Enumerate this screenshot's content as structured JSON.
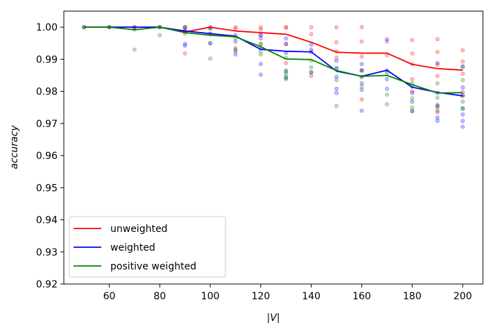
{
  "chart_data": {
    "type": "line",
    "xlabel": "|V|",
    "ylabel": "accuracy",
    "xlim": [
      42,
      208
    ],
    "ylim": [
      0.92,
      1.005
    ],
    "xticks": [
      60,
      80,
      100,
      120,
      140,
      160,
      180,
      200
    ],
    "yticks": [
      0.92,
      0.93,
      0.94,
      0.95,
      0.96,
      0.97,
      0.98,
      0.99,
      1.0
    ],
    "xtick_labels": [
      "60",
      "80",
      "100",
      "120",
      "140",
      "160",
      "180",
      "200"
    ],
    "ytick_labels": [
      "0.92",
      "0.93",
      "0.94",
      "0.95",
      "0.96",
      "0.97",
      "0.98",
      "0.99",
      "1.00"
    ],
    "legend_position": "lower-left",
    "x": [
      50,
      60,
      70,
      80,
      90,
      100,
      110,
      120,
      130,
      140,
      150,
      160,
      170,
      180,
      190,
      200
    ],
    "series": [
      {
        "name": "unweighted",
        "color": "#ff0000",
        "values": [
          1.0,
          1.0,
          1.0,
          1.0,
          0.9985,
          1.0,
          0.9988,
          0.9983,
          0.9978,
          0.9953,
          0.9922,
          0.9919,
          0.9919,
          0.9884,
          0.9871,
          0.9866
        ]
      },
      {
        "name": "weighted",
        "color": "#0000ff",
        "values": [
          1.0,
          1.0,
          1.0,
          1.0,
          0.9988,
          0.998,
          0.9972,
          0.9931,
          0.9925,
          0.9923,
          0.9863,
          0.9847,
          0.9866,
          0.9813,
          0.9797,
          0.9786
        ]
      },
      {
        "name": "positive weighted",
        "color": "#008000",
        "values": [
          1.0,
          1.0,
          0.9992,
          1.0,
          0.9983,
          0.9975,
          0.997,
          0.9939,
          0.9901,
          0.9899,
          0.9865,
          0.9847,
          0.985,
          0.9821,
          0.9795,
          0.9796
        ]
      }
    ],
    "scatter_series": [
      {
        "color": "#ff0000",
        "points": [
          [
            50,
            1.0
          ],
          [
            60,
            1.0
          ],
          [
            70,
            1.0
          ],
          [
            80,
            1.0
          ],
          [
            90,
            1.0
          ],
          [
            90,
            0.9992
          ],
          [
            90,
            0.998
          ],
          [
            90,
            0.9918
          ],
          [
            100,
            1.0
          ],
          [
            100,
            0.998
          ],
          [
            110,
            1.0
          ],
          [
            110,
            0.9995
          ],
          [
            110,
            0.9935
          ],
          [
            120,
            1.0
          ],
          [
            120,
            0.9993
          ],
          [
            120,
            0.9975
          ],
          [
            120,
            0.9948
          ],
          [
            130,
            1.0
          ],
          [
            130,
            0.9998
          ],
          [
            130,
            0.9947
          ],
          [
            130,
            0.9888
          ],
          [
            140,
            1.0
          ],
          [
            140,
            0.9978
          ],
          [
            140,
            0.9848
          ],
          [
            150,
            1.0
          ],
          [
            150,
            0.9953
          ],
          [
            150,
            0.9925
          ],
          [
            150,
            0.9905
          ],
          [
            160,
            1.0
          ],
          [
            160,
            0.9955
          ],
          [
            160,
            0.9908
          ],
          [
            160,
            0.9865
          ],
          [
            160,
            0.9775
          ],
          [
            170,
            0.9955
          ],
          [
            170,
            0.9912
          ],
          [
            180,
            0.996
          ],
          [
            180,
            0.9918
          ],
          [
            180,
            0.9885
          ],
          [
            180,
            0.9838
          ],
          [
            180,
            0.98
          ],
          [
            190,
            0.9963
          ],
          [
            190,
            0.9923
          ],
          [
            190,
            0.9883
          ],
          [
            190,
            0.9848
          ],
          [
            190,
            0.975
          ],
          [
            190,
            0.9735
          ],
          [
            200,
            0.9928
          ],
          [
            200,
            0.9893
          ],
          [
            200,
            0.9855
          ],
          [
            200,
            0.9798
          ],
          [
            200,
            0.9785
          ]
        ]
      },
      {
        "color": "#0000ff",
        "points": [
          [
            50,
            1.0
          ],
          [
            60,
            1.0
          ],
          [
            70,
            1.0
          ],
          [
            80,
            1.0
          ],
          [
            90,
            1.0
          ],
          [
            90,
            0.9988
          ],
          [
            90,
            0.9948
          ],
          [
            90,
            0.9942
          ],
          [
            100,
            0.9998
          ],
          [
            100,
            0.9978
          ],
          [
            100,
            0.995
          ],
          [
            110,
            0.9975
          ],
          [
            110,
            0.9955
          ],
          [
            110,
            0.9925
          ],
          [
            110,
            0.9915
          ],
          [
            120,
            0.9975
          ],
          [
            120,
            0.9965
          ],
          [
            120,
            0.9935
          ],
          [
            120,
            0.9885
          ],
          [
            120,
            0.9852
          ],
          [
            130,
            0.9965
          ],
          [
            130,
            0.9948
          ],
          [
            130,
            0.992
          ],
          [
            130,
            0.9862
          ],
          [
            130,
            0.9842
          ],
          [
            140,
            0.9945
          ],
          [
            140,
            0.993
          ],
          [
            140,
            0.9923
          ],
          [
            140,
            0.986
          ],
          [
            150,
            0.9895
          ],
          [
            150,
            0.9872
          ],
          [
            150,
            0.9845
          ],
          [
            150,
            0.9808
          ],
          [
            150,
            0.9795
          ],
          [
            160,
            0.9885
          ],
          [
            160,
            0.9865
          ],
          [
            160,
            0.9845
          ],
          [
            160,
            0.9825
          ],
          [
            160,
            0.9805
          ],
          [
            160,
            0.974
          ],
          [
            170,
            0.9962
          ],
          [
            170,
            0.9865
          ],
          [
            170,
            0.9838
          ],
          [
            170,
            0.9808
          ],
          [
            180,
            0.9815
          ],
          [
            180,
            0.9795
          ],
          [
            180,
            0.9768
          ],
          [
            180,
            0.9738
          ],
          [
            190,
            0.9888
          ],
          [
            190,
            0.9795
          ],
          [
            190,
            0.9755
          ],
          [
            190,
            0.9718
          ],
          [
            190,
            0.9708
          ],
          [
            200,
            0.9878
          ],
          [
            200,
            0.9812
          ],
          [
            200,
            0.9788
          ],
          [
            200,
            0.9748
          ],
          [
            200,
            0.9728
          ],
          [
            200,
            0.9708
          ],
          [
            200,
            0.969
          ]
        ]
      },
      {
        "color": "#008000",
        "points": [
          [
            50,
            1.0
          ],
          [
            60,
            1.0
          ],
          [
            70,
            0.9993
          ],
          [
            70,
            0.993
          ],
          [
            80,
            1.0
          ],
          [
            80,
            0.9975
          ],
          [
            90,
            1.0
          ],
          [
            90,
            0.9985
          ],
          [
            100,
            0.9995
          ],
          [
            100,
            0.995
          ],
          [
            100,
            0.9902
          ],
          [
            110,
            0.9965
          ],
          [
            110,
            0.993
          ],
          [
            120,
            0.9948
          ],
          [
            120,
            0.9925
          ],
          [
            120,
            0.9915
          ],
          [
            130,
            0.9905
          ],
          [
            130,
            0.9865
          ],
          [
            130,
            0.9855
          ],
          [
            130,
            0.9845
          ],
          [
            130,
            0.9838
          ],
          [
            140,
            0.9895
          ],
          [
            140,
            0.9875
          ],
          [
            140,
            0.9858
          ],
          [
            150,
            0.9872
          ],
          [
            150,
            0.9835
          ],
          [
            150,
            0.9755
          ],
          [
            160,
            0.9865
          ],
          [
            160,
            0.9845
          ],
          [
            160,
            0.9815
          ],
          [
            170,
            0.9858
          ],
          [
            170,
            0.979
          ],
          [
            170,
            0.976
          ],
          [
            180,
            0.9825
          ],
          [
            180,
            0.9778
          ],
          [
            180,
            0.975
          ],
          [
            180,
            0.974
          ],
          [
            190,
            0.9825
          ],
          [
            190,
            0.978
          ],
          [
            190,
            0.9758
          ],
          [
            190,
            0.974
          ],
          [
            200,
            0.9875
          ],
          [
            200,
            0.9835
          ],
          [
            200,
            0.9768
          ],
          [
            200,
            0.9745
          ]
        ]
      }
    ]
  }
}
